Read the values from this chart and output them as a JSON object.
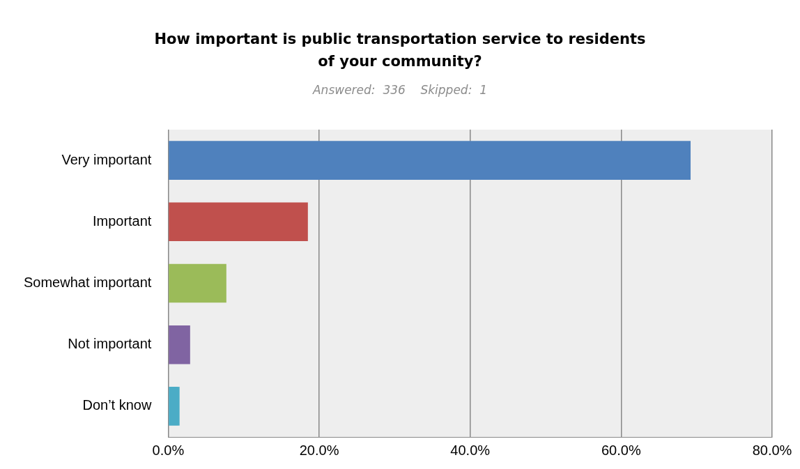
{
  "chart_data": {
    "type": "bar",
    "orientation": "horizontal",
    "title": "How important is public transportation service to residents of your community?",
    "subtitle": "Answered:  336    Skipped:  1",
    "categories": [
      "Very important",
      "Important",
      "Somewhat important",
      "Not important",
      "Don’t know"
    ],
    "values": [
      69.2,
      18.5,
      7.7,
      2.9,
      1.5
    ],
    "colors": [
      "#4f81bd",
      "#c0504d",
      "#9bbb59",
      "#8064a2",
      "#4bacc6"
    ],
    "xlim": [
      0,
      80
    ],
    "xticks": [
      {
        "value": 0,
        "label": "0.0%"
      },
      {
        "value": 20,
        "label": "20.0%"
      },
      {
        "value": 40,
        "label": "40.0%"
      },
      {
        "value": 60,
        "label": "60.0%"
      },
      {
        "value": 80,
        "label": "80.0%"
      }
    ],
    "grid": "x",
    "legend": false
  }
}
